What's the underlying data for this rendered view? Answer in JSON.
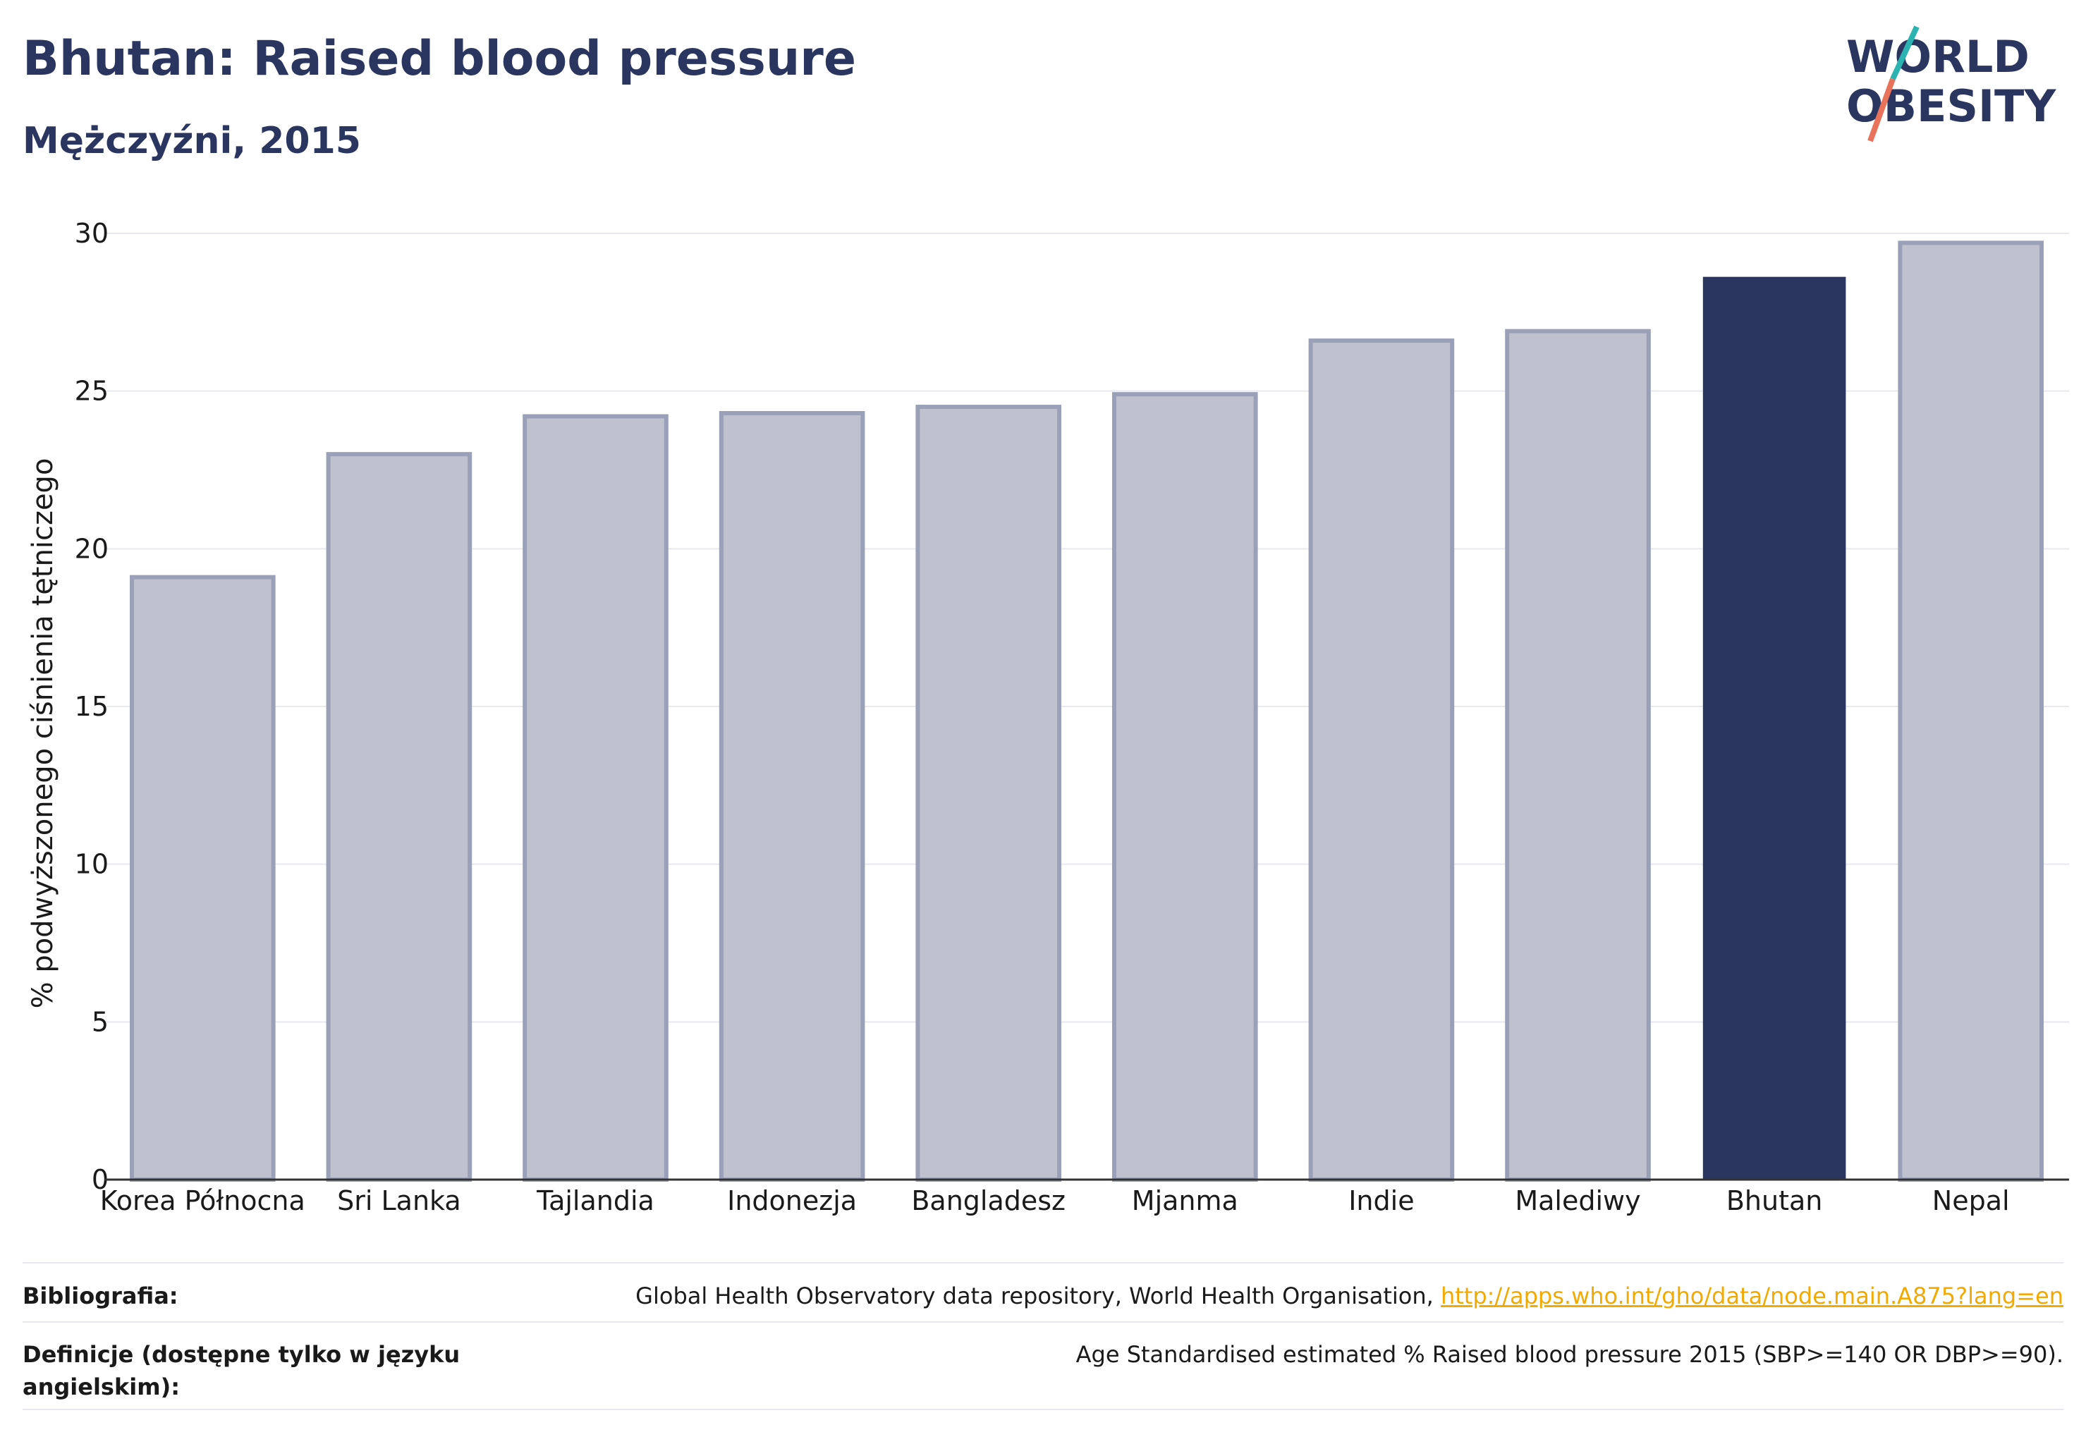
{
  "header": {
    "title": "Bhutan: Raised blood pressure",
    "subtitle": "Mężczyźni, 2015"
  },
  "logo": {
    "line1": "WORLD",
    "line2": "OBESITY",
    "colors": {
      "text": "#2b3660",
      "slash_teal": "#2bb3b1",
      "slash_coral": "#e8735a"
    }
  },
  "colors": {
    "highlight": "#2b3660",
    "bar_fill": "#bfc2ce",
    "bar_stroke": "#9aa0b8",
    "grid": "#e6e9f0"
  },
  "chart_data": {
    "type": "bar",
    "title": "Bhutan: Raised blood pressure",
    "subtitle": "Mężczyźni, 2015",
    "ylabel": "% podwyższonego ciśnienia tętniczego",
    "xlabel": "",
    "ylim": [
      0,
      30
    ],
    "yticks": [
      0,
      5,
      10,
      15,
      20,
      25,
      30
    ],
    "grid": true,
    "highlight_category": "Bhutan",
    "categories": [
      "Korea Północna",
      "Sri Lanka",
      "Tajlandia",
      "Indonezja",
      "Bangladesz",
      "Mjanma",
      "Indie",
      "Malediwy",
      "Bhutan",
      "Nepal"
    ],
    "values": [
      19.1,
      23.0,
      24.2,
      24.3,
      24.5,
      24.9,
      26.6,
      26.9,
      28.6,
      29.7
    ]
  },
  "footer": {
    "bibliography_label": "Bibliografia:",
    "bibliography_text": "Global Health Observatory data repository, World Health Organisation, ",
    "bibliography_link": "http://apps.who.int/gho/data/node.main.A875?lang=en",
    "definitions_label": "Definicje (dostępne tylko w języku angielskim):",
    "definitions_text": "Age Standardised estimated % Raised blood pressure 2015 (SBP>=140 OR DBP>=90)."
  }
}
